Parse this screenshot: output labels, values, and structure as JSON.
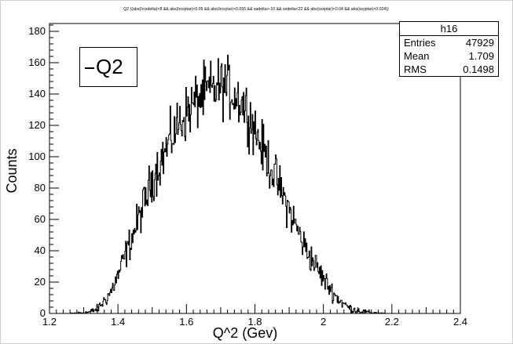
{
  "chart_data": {
    "type": "histogram",
    "title": "Q2 ((abs(Ircsdelta)<8 && abs(Ircsptar)<0.09 && abs(Ircsytar)<0.055 && sadelta>-10 && sndelta<22 && abs(ssxptar)<0.04 && abs(ssyptar)<0.024))",
    "xlabel": "Q^2 (Gev)",
    "ylabel": "Counts",
    "xlim": [
      1.2,
      2.4
    ],
    "ylim": [
      0,
      185
    ],
    "xticks": [
      "1.2",
      "1.4",
      "1.6",
      "1.8",
      "2",
      "2.2",
      "2.4"
    ],
    "yticks": [
      "0",
      "20",
      "40",
      "60",
      "80",
      "100",
      "120",
      "140",
      "160",
      "180"
    ],
    "grid": false,
    "legend": {
      "position": "top-left",
      "entries": [
        "Q2"
      ]
    },
    "series": [
      {
        "name": "Q2",
        "x": [
          1.26,
          1.3,
          1.32,
          1.34,
          1.36,
          1.38,
          1.4,
          1.42,
          1.44,
          1.46,
          1.48,
          1.5,
          1.52,
          1.54,
          1.56,
          1.58,
          1.6,
          1.62,
          1.64,
          1.66,
          1.68,
          1.7,
          1.72,
          1.74,
          1.76,
          1.78,
          1.8,
          1.82,
          1.84,
          1.86,
          1.88,
          1.9,
          1.92,
          1.94,
          1.96,
          1.98,
          2.0,
          2.02,
          2.04,
          2.06,
          2.08,
          2.1,
          2.12,
          2.14,
          2.16,
          2.18
        ],
        "y": [
          0,
          0.5,
          1,
          3,
          8,
          14,
          24,
          36,
          48,
          60,
          72,
          86,
          95,
          104,
          114,
          122,
          128,
          133,
          138,
          141,
          143,
          145,
          144,
          140,
          136,
          128,
          118,
          106,
          97,
          87,
          76,
          66,
          56,
          45,
          37,
          30,
          22,
          16,
          10,
          6,
          3,
          2,
          1,
          0.5,
          0.2,
          0
        ]
      }
    ],
    "stats": {
      "name": "h16",
      "entries_label": "Entries",
      "entries": "47929",
      "mean_label": "Mean",
      "mean": "1.709",
      "rms_label": "RMS",
      "rms": "0.1498"
    },
    "line_color": "#000000",
    "background": "#ffffff"
  }
}
